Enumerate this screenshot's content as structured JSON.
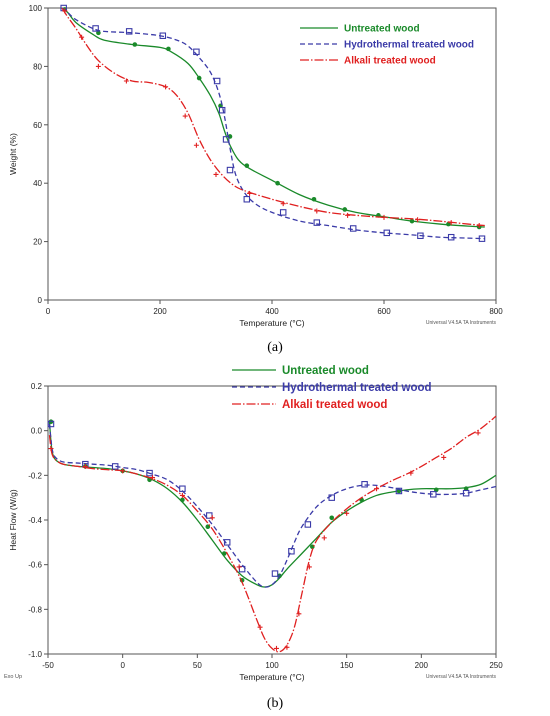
{
  "chart_data": [
    {
      "type": "line",
      "panel": "(a)",
      "xlabel": "Temperature (°C)",
      "ylabel": "Weight (%)",
      "xlim": [
        0,
        800
      ],
      "ylim": [
        0,
        100
      ],
      "xticks": [
        0,
        200,
        400,
        600,
        800
      ],
      "yticks": [
        0,
        20,
        40,
        60,
        80,
        100
      ],
      "footer_note": "Universal V4.5A TA Instruments",
      "grid": false,
      "legend_position": "top-right",
      "series": [
        {
          "name": "Untreated wood",
          "color": "#1a8a2a",
          "dash": "solid",
          "marker": "dot",
          "x": [
            25,
            35,
            50,
            80,
            100,
            150,
            200,
            220,
            250,
            270,
            290,
            305,
            315,
            325,
            340,
            360,
            400,
            450,
            500,
            550,
            600,
            650,
            700,
            750,
            780
          ],
          "y": [
            100,
            98.5,
            95,
            91,
            89,
            87.5,
            86.5,
            85,
            81,
            76,
            70,
            64,
            58,
            53,
            48,
            45,
            41,
            36,
            32.5,
            30,
            28.5,
            27,
            26,
            25.3,
            25
          ],
          "markers_x": [
            30,
            90,
            155,
            215,
            270,
            308,
            325,
            355,
            410,
            475,
            530,
            590,
            650,
            715,
            770
          ],
          "markers_y": [
            99.5,
            91.5,
            87.5,
            86,
            76,
            66.5,
            56,
            46,
            40,
            34.5,
            31,
            29,
            27,
            26,
            25
          ]
        },
        {
          "name": "Hydrothermal treated wood",
          "color": "#3b3ba8",
          "dash": "dashed",
          "marker": "square",
          "x": [
            25,
            35,
            50,
            80,
            100,
            150,
            200,
            230,
            250,
            270,
            290,
            305,
            315,
            325,
            335,
            350,
            370,
            400,
            450,
            500,
            550,
            600,
            650,
            700,
            750,
            780
          ],
          "y": [
            100,
            98.5,
            96,
            93,
            92,
            91.5,
            90.5,
            89,
            87,
            83,
            78,
            71,
            63,
            52,
            43,
            37,
            33,
            30,
            27,
            25.5,
            24,
            23,
            22.3,
            21.5,
            21.2,
            21
          ],
          "markers_x": [
            28,
            85,
            145,
            205,
            265,
            302,
            311,
            318,
            325,
            355,
            420,
            480,
            545,
            605,
            665,
            720,
            775
          ],
          "markers_y": [
            100,
            93,
            92,
            90.5,
            85,
            75,
            65,
            55,
            44.5,
            34.5,
            30,
            26.5,
            24.5,
            23,
            22,
            21.5,
            21
          ]
        },
        {
          "name": "Alkali treated wood",
          "color": "#e02020",
          "dash": "dash-dot",
          "marker": "plus",
          "x": [
            25,
            35,
            50,
            70,
            90,
            120,
            150,
            180,
            210,
            230,
            250,
            270,
            290,
            310,
            330,
            350,
            400,
            450,
            500,
            550,
            600,
            650,
            700,
            750,
            780
          ],
          "y": [
            100,
            97,
            93,
            87,
            82,
            77.5,
            75,
            74.5,
            73,
            70,
            64,
            55,
            48,
            43,
            39.5,
            37.5,
            34.5,
            32,
            30,
            29,
            28.3,
            27.8,
            27,
            26,
            25.5
          ],
          "markers_x": [
            30,
            60,
            90,
            140,
            210,
            245,
            265,
            300,
            360,
            420,
            480,
            535,
            600,
            660,
            720,
            770
          ],
          "markers_y": [
            99,
            90,
            80,
            75,
            73,
            63,
            53,
            43,
            36.5,
            33,
            30.5,
            29,
            28.3,
            27.5,
            26.5,
            25.5
          ]
        }
      ]
    },
    {
      "type": "line",
      "panel": "(b)",
      "xlabel": "Temperature (°C)",
      "ylabel": "Heat Flow (W/g)",
      "xlim": [
        -50,
        250
      ],
      "ylim": [
        -1.0,
        0.2
      ],
      "xticks": [
        -50,
        0,
        50,
        100,
        150,
        200,
        250
      ],
      "yticks": [
        -1.0,
        -0.8,
        -0.6,
        -0.4,
        -0.2,
        0.0,
        0.2
      ],
      "yticklabels": [
        "-1.0",
        "-0.8",
        "-0.6",
        "-0.4",
        "-0.2",
        "0.0",
        "0.2"
      ],
      "corner_note": "Exo Up",
      "footer_note": "Universal V4.5A TA Instruments",
      "grid": false,
      "legend_position": "top-center",
      "series": [
        {
          "name": "Untreated wood",
          "color": "#1a8a2a",
          "dash": "solid",
          "marker": "dot",
          "x": [
            -49,
            -48,
            -47,
            -45,
            -40,
            -30,
            -20,
            -10,
            0,
            10,
            20,
            30,
            40,
            50,
            60,
            70,
            80,
            90,
            95,
            100,
            105,
            110,
            120,
            130,
            140,
            150,
            160,
            170,
            180,
            190,
            200,
            210,
            220,
            230,
            240,
            250
          ],
          "y": [
            0.04,
            -0.05,
            -0.1,
            -0.13,
            -0.15,
            -0.16,
            -0.165,
            -0.17,
            -0.18,
            -0.195,
            -0.22,
            -0.26,
            -0.32,
            -0.4,
            -0.49,
            -0.58,
            -0.65,
            -0.69,
            -0.7,
            -0.69,
            -0.66,
            -0.62,
            -0.55,
            -0.48,
            -0.41,
            -0.36,
            -0.32,
            -0.29,
            -0.275,
            -0.265,
            -0.26,
            -0.26,
            -0.26,
            -0.255,
            -0.24,
            -0.2
          ],
          "markers_x": [
            -48,
            -25,
            0,
            18,
            40,
            57,
            68,
            80,
            105,
            127,
            140,
            160,
            185,
            210,
            230
          ],
          "markers_y": [
            0.04,
            -0.16,
            -0.18,
            -0.22,
            -0.31,
            -0.43,
            -0.55,
            -0.67,
            -0.65,
            -0.52,
            -0.39,
            -0.31,
            -0.27,
            -0.265,
            -0.26
          ]
        },
        {
          "name": "Hydrothermal treated wood",
          "color": "#3b3ba8",
          "dash": "dashed",
          "marker": "square",
          "x": [
            -49,
            -48,
            -47,
            -45,
            -40,
            -30,
            -20,
            -10,
            0,
            10,
            20,
            30,
            40,
            50,
            60,
            70,
            80,
            90,
            95,
            100,
            105,
            110,
            115,
            120,
            130,
            140,
            150,
            160,
            170,
            180,
            190,
            200,
            210,
            220,
            230,
            240,
            250
          ],
          "y": [
            0.03,
            -0.04,
            -0.09,
            -0.12,
            -0.14,
            -0.145,
            -0.15,
            -0.155,
            -0.165,
            -0.175,
            -0.195,
            -0.22,
            -0.27,
            -0.34,
            -0.42,
            -0.51,
            -0.6,
            -0.68,
            -0.7,
            -0.69,
            -0.65,
            -0.58,
            -0.5,
            -0.43,
            -0.34,
            -0.29,
            -0.26,
            -0.245,
            -0.245,
            -0.255,
            -0.27,
            -0.28,
            -0.285,
            -0.285,
            -0.28,
            -0.265,
            -0.25
          ],
          "markers_x": [
            -48,
            -25,
            -5,
            18,
            40,
            58,
            70,
            80,
            102,
            113,
            124,
            140,
            162,
            185,
            208,
            230
          ],
          "markers_y": [
            0.03,
            -0.15,
            -0.16,
            -0.19,
            -0.26,
            -0.38,
            -0.5,
            -0.62,
            -0.64,
            -0.54,
            -0.42,
            -0.3,
            -0.24,
            -0.27,
            -0.285,
            -0.28
          ]
        },
        {
          "name": "Alkali treated wood",
          "color": "#e02020",
          "dash": "dash-dot",
          "marker": "plus",
          "x": [
            -49,
            -48,
            -47,
            -45,
            -40,
            -30,
            -20,
            -10,
            0,
            10,
            20,
            30,
            40,
            50,
            60,
            70,
            80,
            90,
            95,
            100,
            105,
            110,
            115,
            120,
            125,
            130,
            140,
            150,
            160,
            170,
            180,
            190,
            200,
            210,
            220,
            230,
            240,
            250
          ],
          "y": [
            -0.02,
            -0.08,
            -0.11,
            -0.13,
            -0.15,
            -0.16,
            -0.17,
            -0.175,
            -0.18,
            -0.195,
            -0.215,
            -0.245,
            -0.29,
            -0.36,
            -0.44,
            -0.55,
            -0.68,
            -0.85,
            -0.93,
            -0.975,
            -0.99,
            -0.96,
            -0.88,
            -0.73,
            -0.58,
            -0.49,
            -0.41,
            -0.35,
            -0.3,
            -0.26,
            -0.225,
            -0.195,
            -0.16,
            -0.12,
            -0.08,
            -0.03,
            0.01,
            0.065
          ],
          "markers_x": [
            -48,
            -25,
            0,
            20,
            40,
            60,
            78,
            92,
            103,
            110,
            118,
            125,
            135,
            150,
            170,
            193,
            215,
            238
          ],
          "markers_y": [
            -0.08,
            -0.16,
            -0.18,
            -0.21,
            -0.29,
            -0.39,
            -0.61,
            -0.88,
            -0.975,
            -0.97,
            -0.82,
            -0.61,
            -0.48,
            -0.37,
            -0.26,
            -0.19,
            -0.12,
            -0.01
          ]
        }
      ]
    }
  ],
  "captions": {
    "a": "(a)",
    "b": "(b)"
  }
}
